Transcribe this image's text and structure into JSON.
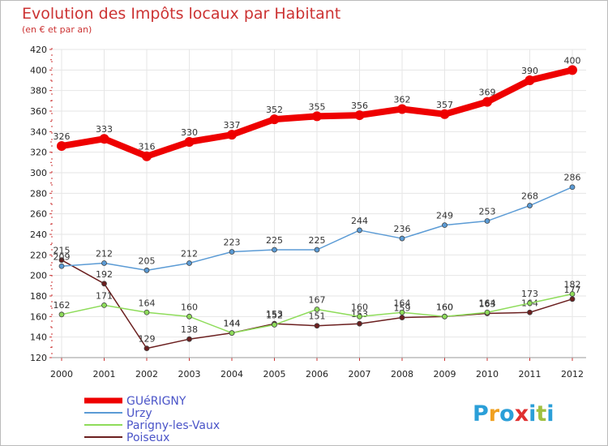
{
  "chart_data": {
    "type": "line",
    "title": "Evolution des Impôts locaux par Habitant",
    "subtitle": "(en € et par an)",
    "x": [
      "2000",
      "2001",
      "2002",
      "2003",
      "2004",
      "2005",
      "2006",
      "2007",
      "2008",
      "2009",
      "2010",
      "2011",
      "2012"
    ],
    "ylim": [
      120,
      420
    ],
    "yticks": [
      120,
      140,
      160,
      180,
      200,
      220,
      240,
      260,
      280,
      300,
      320,
      340,
      360,
      380,
      400,
      420
    ],
    "grid": true,
    "legend_position": "bottom-left",
    "series": [
      {
        "name": "GUéRIGNY",
        "color": "#ee0000",
        "values": [
          326,
          333,
          316,
          330,
          337,
          352,
          355,
          356,
          362,
          357,
          369,
          390,
          400
        ]
      },
      {
        "name": "Urzy",
        "color": "#5b9bd5",
        "values": [
          209,
          212,
          205,
          212,
          223,
          225,
          225,
          244,
          236,
          249,
          253,
          268,
          286
        ]
      },
      {
        "name": "Parigny-les-Vaux",
        "color": "#8edc5a",
        "values": [
          162,
          171,
          164,
          160,
          144,
          152,
          167,
          160,
          164,
          160,
          164,
          173,
          182
        ]
      },
      {
        "name": "Poiseux",
        "color": "#6b1f1f",
        "values": [
          215,
          192,
          129,
          138,
          144,
          153,
          151,
          153,
          159,
          160,
          163,
          164,
          177
        ]
      }
    ]
  },
  "brand": {
    "logo_letters": [
      "P",
      "r",
      "o",
      "x",
      "i",
      "t",
      "i"
    ],
    "logo_colors": [
      "#2b9fd8",
      "#f0a020",
      "#2b9fd8",
      "#e03030",
      "#2b9fd8",
      "#a0c040",
      "#2b9fd8"
    ]
  }
}
